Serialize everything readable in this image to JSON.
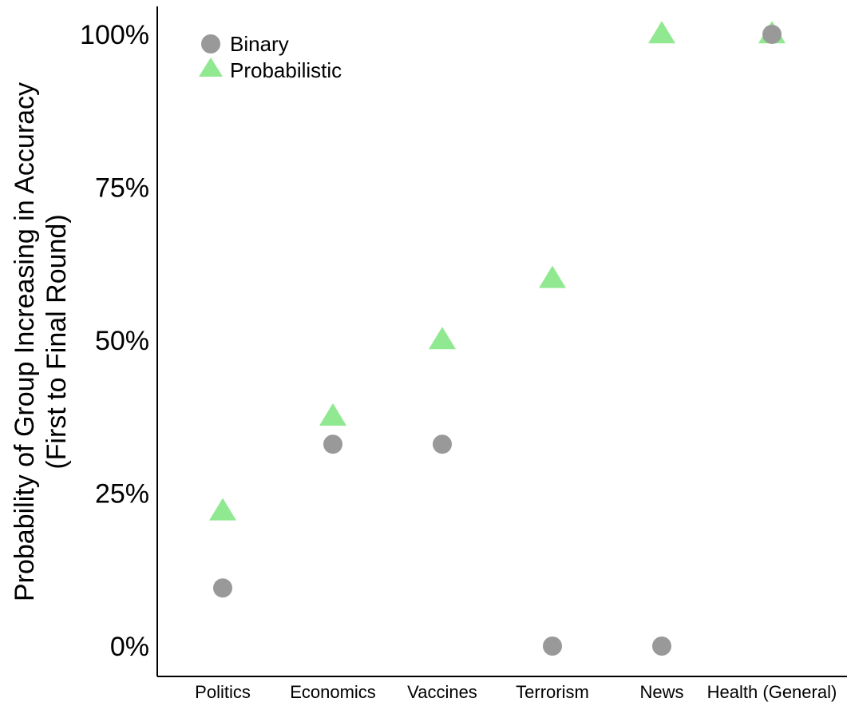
{
  "chart_data": {
    "type": "scatter",
    "categories": [
      "Politics",
      "Economics",
      "Vaccines",
      "Terrorism",
      "News",
      "Health (General)"
    ],
    "series": [
      {
        "name": "Binary",
        "values": [
          9.5,
          33,
          33,
          0,
          0,
          100
        ],
        "color": "#999999",
        "marker": "circle"
      },
      {
        "name": "Probabilistic",
        "values": [
          22,
          37.5,
          50,
          60,
          100,
          100
        ],
        "color": "#90e890",
        "marker": "triangle"
      }
    ],
    "ylabel_line1": "Probability of Group Increasing in Accuracy",
    "ylabel_line2": "(First to Final Round)",
    "yticks": [
      "0%",
      "25%",
      "50%",
      "75%",
      "100%"
    ],
    "ytick_values": [
      0,
      25,
      50,
      75,
      100
    ],
    "ylim": [
      0,
      100
    ],
    "legend_position": "top-left",
    "grid": false
  }
}
